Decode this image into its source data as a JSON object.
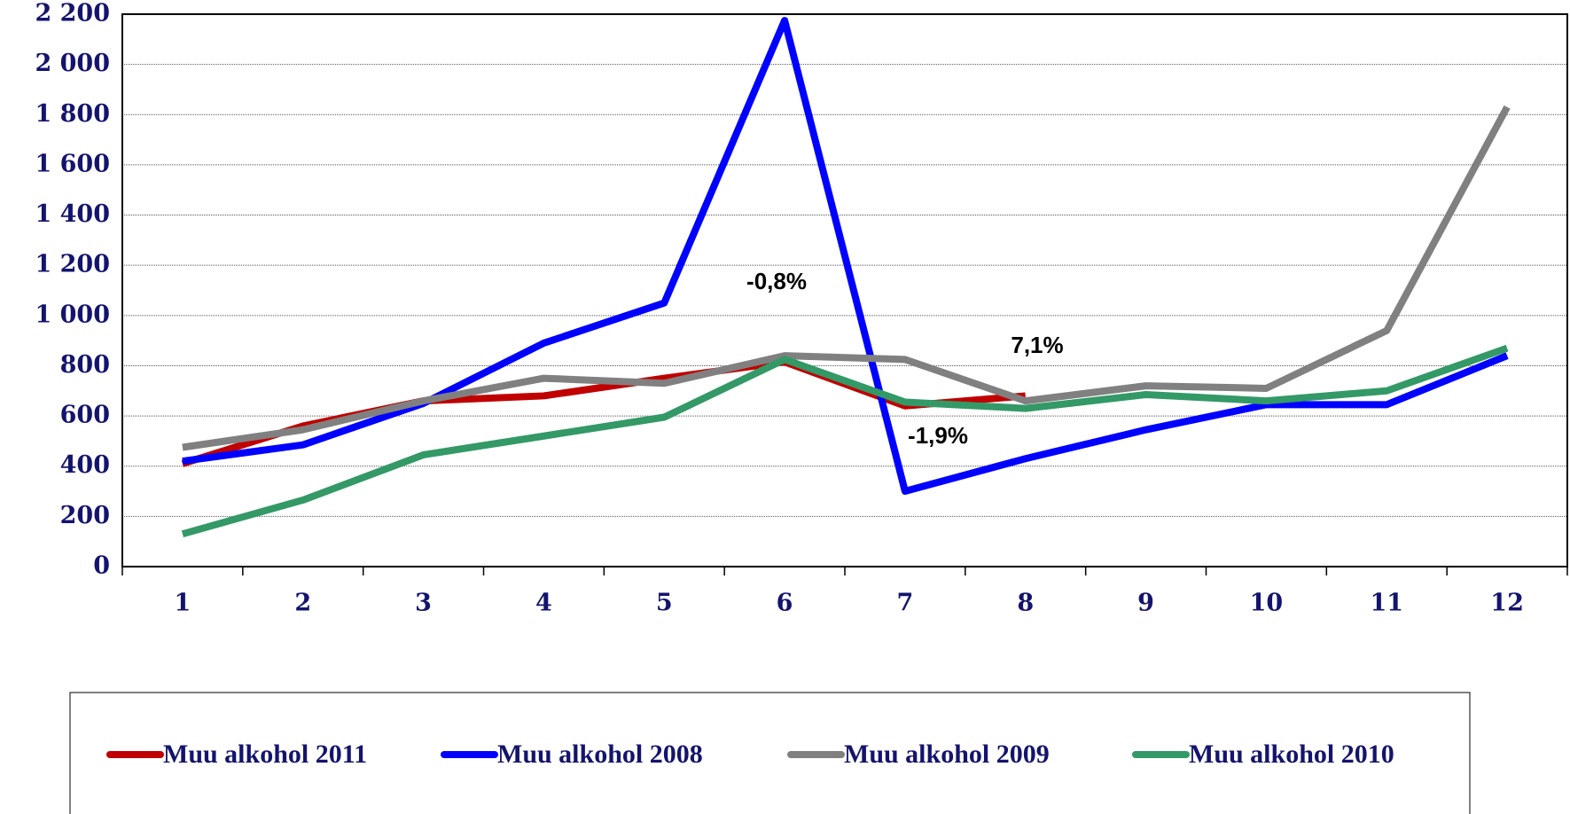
{
  "chart_data": {
    "type": "line",
    "categories": [
      "1",
      "2",
      "3",
      "4",
      "5",
      "6",
      "7",
      "8",
      "9",
      "10",
      "11",
      "12"
    ],
    "ylim": [
      0,
      2200
    ],
    "yticks": [
      0,
      200,
      400,
      600,
      800,
      {
        "value": 1000,
        "label": "1 000"
      },
      {
        "value": 1200,
        "label": "1 200"
      },
      {
        "value": 1400,
        "label": "1 400"
      },
      {
        "value": 1600,
        "label": "1 600"
      },
      {
        "value": 1800,
        "label": "1 800"
      },
      {
        "value": 2000,
        "label": "2 000"
      },
      {
        "value": 2200,
        "label": "2 200"
      }
    ],
    "grid": true,
    "legend": "bottom",
    "annotations": [
      "-0,8%",
      "7,1%",
      "-1,9%"
    ],
    "series": [
      {
        "name": "Muu alkohol 2011",
        "color": "#c00000",
        "values": [
          410,
          560,
          660,
          680,
          750,
          815,
          640,
          680,
          null,
          null,
          null,
          null
        ]
      },
      {
        "name": "Muu alkohol 2008",
        "color": "#0000ff",
        "values": [
          420,
          485,
          650,
          890,
          1050,
          2175,
          300,
          430,
          545,
          645,
          645,
          840
        ]
      },
      {
        "name": "Muu alkohol 2009",
        "color": "#808080",
        "values": [
          475,
          545,
          660,
          750,
          730,
          840,
          825,
          660,
          720,
          710,
          940,
          1830
        ]
      },
      {
        "name": "Muu alkohol 2010",
        "color": "#339966",
        "values": [
          130,
          265,
          445,
          520,
          595,
          825,
          655,
          630,
          685,
          660,
          700,
          870
        ]
      }
    ]
  }
}
